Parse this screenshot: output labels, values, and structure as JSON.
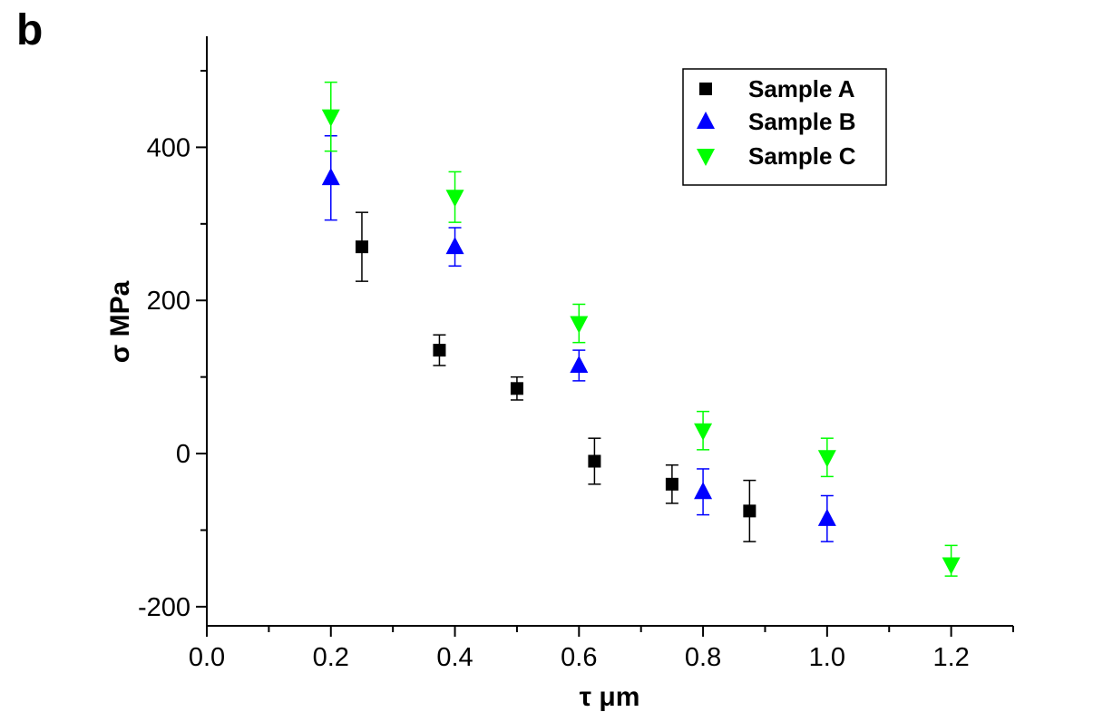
{
  "panel_label": "b",
  "chart_data": {
    "type": "scatter",
    "title": "",
    "xlabel": "τ μm",
    "ylabel": "σ MPa",
    "xlim": [
      0.0,
      1.3
    ],
    "ylim": [
      -225,
      545
    ],
    "x_ticks": [
      "0.0",
      "0.2",
      "0.4",
      "0.6",
      "0.8",
      "1.0",
      "1.2"
    ],
    "y_ticks": [
      "-200",
      "0",
      "200",
      "400"
    ],
    "legend_position": "top-right",
    "error_bars": true,
    "series": [
      {
        "name": "Sample A",
        "marker": "square",
        "color": "#000000",
        "points": [
          {
            "x": 0.25,
            "y": 270,
            "lo": 225,
            "hi": 315
          },
          {
            "x": 0.375,
            "y": 135,
            "lo": 115,
            "hi": 155
          },
          {
            "x": 0.5,
            "y": 85,
            "lo": 70,
            "hi": 100
          },
          {
            "x": 0.625,
            "y": -10,
            "lo": -40,
            "hi": 20
          },
          {
            "x": 0.75,
            "y": -40,
            "lo": -65,
            "hi": -15
          },
          {
            "x": 0.875,
            "y": -75,
            "lo": -115,
            "hi": -35
          }
        ]
      },
      {
        "name": "Sample B",
        "marker": "triangle-up",
        "color": "#0000ff",
        "points": [
          {
            "x": 0.2,
            "y": 360,
            "lo": 305,
            "hi": 415
          },
          {
            "x": 0.4,
            "y": 270,
            "lo": 245,
            "hi": 295
          },
          {
            "x": 0.6,
            "y": 115,
            "lo": 95,
            "hi": 135
          },
          {
            "x": 0.8,
            "y": -50,
            "lo": -80,
            "hi": -20
          },
          {
            "x": 1.0,
            "y": -85,
            "lo": -115,
            "hi": -55
          }
        ]
      },
      {
        "name": "Sample C",
        "marker": "triangle-down",
        "color": "#00ff00",
        "points": [
          {
            "x": 0.2,
            "y": 440,
            "lo": 395,
            "hi": 485
          },
          {
            "x": 0.4,
            "y": 335,
            "lo": 302,
            "hi": 368
          },
          {
            "x": 0.6,
            "y": 170,
            "lo": 145,
            "hi": 195
          },
          {
            "x": 0.8,
            "y": 30,
            "lo": 5,
            "hi": 55
          },
          {
            "x": 1.0,
            "y": -5,
            "lo": -30,
            "hi": 20
          },
          {
            "x": 1.2,
            "y": -145,
            "lo": -160,
            "hi": -120
          }
        ]
      }
    ]
  }
}
